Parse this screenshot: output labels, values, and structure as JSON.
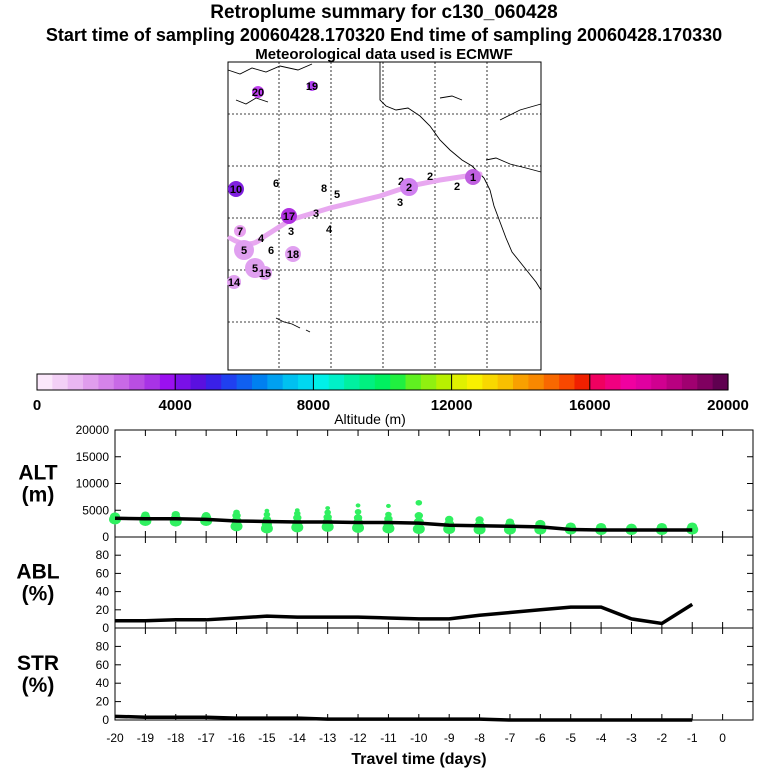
{
  "header": {
    "title": "Retroplume summary for c130_060428",
    "sampling": "Start time of sampling 20060428.170320     End time of sampling 20060428.170330",
    "met": "Meteorological data used is ECMWF"
  },
  "colorbar": {
    "label": "Altitude (m)",
    "ticks": [
      "0",
      "4000",
      "8000",
      "12000",
      "16000",
      "20000"
    ],
    "colors": [
      "#fbe8fb",
      "#f3d0f6",
      "#eab7f2",
      "#e09ded",
      "#d583ea",
      "#c869e6",
      "#b94ee3",
      "#a833e6",
      "#9b10f0",
      "#7a10e8",
      "#5a10e0",
      "#3a20e8",
      "#2040f0",
      "#1060f0",
      "#0080f0",
      "#00a0f0",
      "#00c0f0",
      "#00d8f0",
      "#00f0e8",
      "#00f0c8",
      "#00f0a0",
      "#00f080",
      "#00f060",
      "#20f040",
      "#60f020",
      "#90f010",
      "#b8f000",
      "#e0f000",
      "#f8f000",
      "#f8d800",
      "#f8c000",
      "#f8a000",
      "#f88800",
      "#f86800",
      "#f84800",
      "#f02000",
      "#f00060",
      "#f00080",
      "#f000a0",
      "#e000a0",
      "#d00090",
      "#b80080",
      "#a00070",
      "#800060",
      "#600050"
    ]
  },
  "map": {
    "labels": [
      {
        "t": "20",
        "x": 258,
        "y": 92,
        "c": "#c040f0",
        "r": 6
      },
      {
        "t": "19",
        "x": 312,
        "y": 86,
        "c": "#b040f0",
        "r": 5
      },
      {
        "t": "10",
        "x": 236,
        "y": 189,
        "c": "#8020e0",
        "r": 8
      },
      {
        "t": "6",
        "x": 276,
        "y": 183,
        "c": "#000000",
        "r": 0
      },
      {
        "t": "8",
        "x": 324,
        "y": 188,
        "c": "#000000",
        "r": 0
      },
      {
        "t": "5",
        "x": 337,
        "y": 194,
        "c": "#000000",
        "r": 0
      },
      {
        "t": "17",
        "x": 289,
        "y": 216,
        "c": "#b030e0",
        "r": 8
      },
      {
        "t": "3",
        "x": 316,
        "y": 213,
        "c": "#000000",
        "r": 0
      },
      {
        "t": "7",
        "x": 240,
        "y": 231,
        "c": "#e8a0f0",
        "r": 6
      },
      {
        "t": "4",
        "x": 261,
        "y": 238,
        "c": "#000000",
        "r": 0
      },
      {
        "t": "5",
        "x": 244,
        "y": 250,
        "c": "#e0a0f0",
        "r": 10
      },
      {
        "t": "6",
        "x": 271,
        "y": 250,
        "c": "#000000",
        "r": 0
      },
      {
        "t": "18",
        "x": 293,
        "y": 254,
        "c": "#e0a0f0",
        "r": 8
      },
      {
        "t": "5",
        "x": 255,
        "y": 268,
        "c": "#e0a0f0",
        "r": 10
      },
      {
        "t": "15",
        "x": 265,
        "y": 273,
        "c": "#e0a0f0",
        "r": 7
      },
      {
        "t": "14",
        "x": 234,
        "y": 282,
        "c": "#e0a0f0",
        "r": 7
      },
      {
        "t": "2",
        "x": 401,
        "y": 181,
        "c": "#000000",
        "r": 0
      },
      {
        "t": "2",
        "x": 409,
        "y": 187,
        "c": "#d080f0",
        "r": 9
      },
      {
        "t": "3",
        "x": 400,
        "y": 202,
        "c": "#000000",
        "r": 0
      },
      {
        "t": "2",
        "x": 430,
        "y": 176,
        "c": "#000000",
        "r": 0
      },
      {
        "t": "2",
        "x": 457,
        "y": 186,
        "c": "#000000",
        "r": 0
      },
      {
        "t": "1",
        "x": 473,
        "y": 177,
        "c": "#c060e0",
        "r": 8
      },
      {
        "t": "4",
        "x": 329,
        "y": 229,
        "c": "#000000",
        "r": 0
      },
      {
        "t": "3",
        "x": 291,
        "y": 231,
        "c": "#000000",
        "r": 0
      }
    ]
  },
  "chart_data": [
    {
      "type": "scatter",
      "panel": "ALT",
      "ylabel": "ALT (m)",
      "ylim": [
        0,
        20000
      ],
      "yticks": [
        "0",
        "5000",
        "10000",
        "15000",
        "20000"
      ],
      "x": [
        -20,
        -19,
        -18,
        -17,
        -16,
        -15,
        -14,
        -13,
        -12,
        -11,
        -10,
        -9,
        -8,
        -7,
        -6,
        -5,
        -4,
        -3,
        -2,
        -1
      ],
      "mean_line": [
        3500,
        3400,
        3400,
        3300,
        3000,
        2900,
        2800,
        2800,
        2700,
        2700,
        2600,
        2200,
        2100,
        2000,
        1900,
        1400,
        1300,
        1300,
        1300,
        1300
      ],
      "clusters": [
        {
          "x": -20,
          "alts": [
            3300,
            3800
          ]
        },
        {
          "x": -19,
          "alts": [
            3000,
            3600,
            4100
          ]
        },
        {
          "x": -18,
          "alts": [
            2900,
            3500,
            4200
          ]
        },
        {
          "x": -17,
          "alts": [
            3000,
            3600,
            4000
          ]
        },
        {
          "x": -16,
          "alts": [
            2000,
            3000,
            4000,
            4600
          ]
        },
        {
          "x": -15,
          "alts": [
            1600,
            2400,
            3300,
            4200,
            4900
          ]
        },
        {
          "x": -14,
          "alts": [
            1800,
            2600,
            3600,
            4400,
            5000
          ]
        },
        {
          "x": -13,
          "alts": [
            1900,
            2800,
            3700,
            4600,
            5400
          ]
        },
        {
          "x": -12,
          "alts": [
            1700,
            2700,
            3600,
            4700,
            5900
          ]
        },
        {
          "x": -11,
          "alts": [
            1600,
            2600,
            3400,
            4200,
            5800
          ]
        },
        {
          "x": -10,
          "alts": [
            1500,
            2800,
            4000,
            6400
          ]
        },
        {
          "x": -9,
          "alts": [
            1500,
            2400,
            3300
          ]
        },
        {
          "x": -8,
          "alts": [
            1400,
            2200,
            3200
          ]
        },
        {
          "x": -7,
          "alts": [
            1400,
            2200,
            2800
          ]
        },
        {
          "x": -6,
          "alts": [
            1400,
            2400
          ]
        },
        {
          "x": -5,
          "alts": [
            1400,
            1900
          ]
        },
        {
          "x": -4,
          "alts": [
            1300,
            1800
          ]
        },
        {
          "x": -3,
          "alts": [
            1300,
            1700
          ]
        },
        {
          "x": -2,
          "alts": [
            1300,
            1800
          ]
        },
        {
          "x": -1,
          "alts": [
            1400,
            1900
          ]
        }
      ]
    },
    {
      "type": "line",
      "panel": "ABL",
      "ylabel": "ABL (%)",
      "ylim": [
        0,
        100
      ],
      "yticks": [
        "0",
        "20",
        "40",
        "60",
        "80"
      ],
      "x": [
        -20,
        -19,
        -18,
        -17,
        -16,
        -15,
        -14,
        -13,
        -12,
        -11,
        -10,
        -9,
        -8,
        -7,
        -6,
        -5,
        -4,
        -3,
        -2,
        -1
      ],
      "values": [
        8,
        8,
        9,
        9,
        11,
        13,
        12,
        12,
        12,
        11,
        10,
        10,
        14,
        17,
        20,
        23,
        23,
        10,
        5,
        26
      ]
    },
    {
      "type": "line",
      "panel": "STR",
      "ylabel": "STR (%)",
      "ylim": [
        0,
        100
      ],
      "yticks": [
        "0",
        "20",
        "40",
        "60",
        "80"
      ],
      "xlabel": "Travel time (days)",
      "xticks": [
        "-20",
        "-19",
        "-18",
        "-17",
        "-16",
        "-15",
        "-14",
        "-13",
        "-12",
        "-11",
        "-10",
        "-9",
        "-8",
        "-7",
        "-6",
        "-5",
        "-4",
        "-3",
        "-2",
        "-1",
        "0"
      ],
      "x": [
        -20,
        -19,
        -18,
        -17,
        -16,
        -15,
        -14,
        -13,
        -12,
        -11,
        -10,
        -9,
        -8,
        -7,
        -6,
        -5,
        -4,
        -3,
        -2,
        -1
      ],
      "values": [
        4,
        3,
        3,
        3,
        2,
        2,
        2,
        1,
        1,
        1,
        1,
        1,
        1,
        0,
        0,
        0,
        0,
        0,
        0,
        0
      ]
    }
  ]
}
